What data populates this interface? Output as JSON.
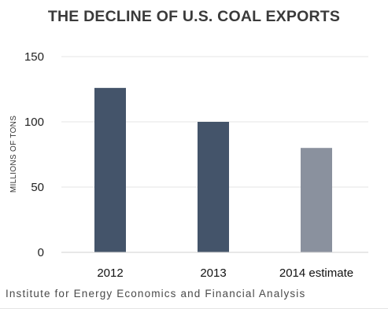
{
  "chart_data": {
    "type": "bar",
    "title": "THE DECLINE OF U.S. COAL EXPORTS",
    "ylabel": "MILLIONS OF TONS",
    "xlabel": "",
    "categories": [
      "2012",
      "2013",
      "2014 estimate"
    ],
    "values": [
      126,
      100,
      80
    ],
    "bar_colors": [
      "#44546a",
      "#44546a",
      "#8a919e"
    ],
    "ylim": [
      0,
      150
    ],
    "yticks": [
      0,
      50,
      100,
      150
    ],
    "grid": true,
    "source": "Institute for Energy Economics and Financial Analysis"
  }
}
